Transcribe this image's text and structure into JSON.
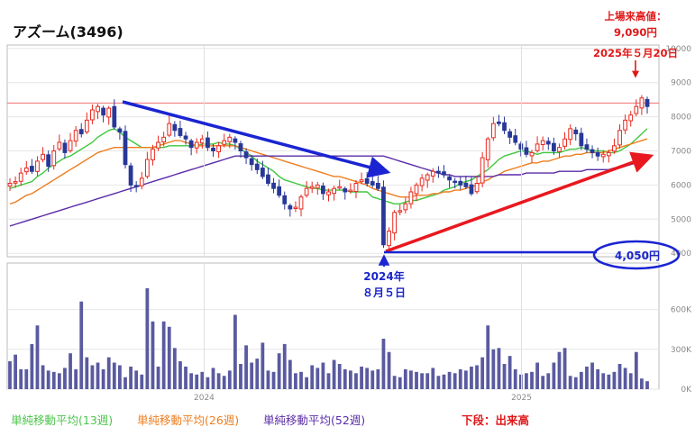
{
  "title": "アズーム(3496)",
  "colors": {
    "up": "#e8281e",
    "down": "#283898",
    "ma13": "#3ec83e",
    "ma26": "#ee7d1e",
    "ma52": "#5a2ca8",
    "volume": "#5a5aa0",
    "blue_arrow": "#1a24d2",
    "red_arrow": "#e8181e",
    "high_line": "#f07070"
  },
  "legend": {
    "ma13": "単純移動平均(13週)",
    "ma26": "単純移動平均(26週)",
    "ma52": "単純移動平均(52週)",
    "volume_note": "下段：出来高"
  },
  "annotations": {
    "high_l1": "上場来高値：",
    "high_l2": "9,090円",
    "high_l3": "2025年５月20日",
    "low_l1": "2024年",
    "low_l2": "８月５日",
    "low_price": "4,050円"
  },
  "chart_data": {
    "type": "candlestick",
    "title": "アズーム(3496)",
    "xlabel": "",
    "ylabel": "",
    "x_range": [
      "2023-05-22",
      "2025-05-26"
    ],
    "x_ticks": [
      {
        "label": "2024",
        "date": "2024-01-01"
      },
      {
        "label": "2025",
        "date": "2025-01-01"
      }
    ],
    "price_ylim": [
      3900,
      10100
    ],
    "price_ticks": [
      {
        "label": "4000",
        "value": 4000
      },
      {
        "label": "5000",
        "value": 5000
      },
      {
        "label": "6000",
        "value": 6000
      },
      {
        "label": "7000",
        "value": 7000
      },
      {
        "label": "8000",
        "value": 8000
      },
      {
        "label": "9000",
        "value": 9000
      },
      {
        "label": "10000",
        "value": 10000
      }
    ],
    "volume_ylim": [
      0,
      950000
    ],
    "volume_ticks": [
      {
        "label": "0K",
        "value": 0
      },
      {
        "label": "300K",
        "value": 300000
      },
      {
        "label": "600K",
        "value": 600000
      }
    ],
    "high_line_value": 8400,
    "weekly_close": [
      6050,
      6100,
      6350,
      6500,
      6400,
      6700,
      6900,
      6550,
      7000,
      7250,
      6950,
      7300,
      7600,
      7500,
      7900,
      8200,
      8300,
      8050,
      8250,
      7700,
      7550,
      6600,
      6000,
      5950,
      6200,
      6750,
      7050,
      7250,
      7400,
      7800,
      7600,
      7450,
      7350,
      7100,
      7250,
      7350,
      7100,
      7000,
      7150,
      7300,
      7400,
      7250,
      7000,
      6800,
      6600,
      6450,
      6250,
      6050,
      5900,
      5700,
      5450,
      5300,
      5350,
      5650,
      5900,
      5950,
      6000,
      5750,
      5800,
      5900,
      5950,
      5800,
      5850,
      6050,
      6150,
      6050,
      6000,
      5900,
      4250,
      4650,
      5200,
      5250,
      5450,
      5800,
      6000,
      6200,
      6300,
      6400,
      6350,
      6300,
      6150,
      6100,
      6000,
      5950,
      5750,
      6050,
      6800,
      7350,
      7800,
      7800,
      7600,
      7400,
      7250,
      7050,
      6900,
      6950,
      7200,
      7300,
      7200,
      7000,
      7100,
      7350,
      7650,
      7500,
      7150,
      7050,
      6950,
      6850,
      6900,
      6950,
      7150,
      7600,
      7900,
      8050,
      8300,
      8550,
      8300
    ],
    "volume": [
      210000,
      260000,
      150000,
      150000,
      340000,
      480000,
      180000,
      140000,
      130000,
      120000,
      160000,
      270000,
      150000,
      660000,
      240000,
      180000,
      200000,
      150000,
      240000,
      200000,
      180000,
      90000,
      170000,
      140000,
      110000,
      760000,
      510000,
      170000,
      510000,
      470000,
      310000,
      210000,
      170000,
      120000,
      110000,
      130000,
      90000,
      160000,
      120000,
      100000,
      140000,
      560000,
      190000,
      330000,
      200000,
      230000,
      350000,
      140000,
      130000,
      270000,
      340000,
      220000,
      120000,
      130000,
      90000,
      180000,
      160000,
      200000,
      120000,
      220000,
      190000,
      150000,
      140000,
      120000,
      170000,
      160000,
      140000,
      150000,
      380000,
      280000,
      100000,
      90000,
      150000,
      140000,
      130000,
      120000,
      120000,
      160000,
      100000,
      110000,
      130000,
      120000,
      150000,
      140000,
      170000,
      180000,
      240000,
      480000,
      300000,
      310000,
      190000,
      250000,
      150000,
      110000,
      120000,
      130000,
      200000,
      100000,
      120000,
      200000,
      280000,
      310000,
      100000,
      90000,
      130000,
      170000,
      200000,
      150000,
      120000,
      110000,
      130000,
      190000,
      160000,
      120000,
      280000,
      80000,
      60000
    ],
    "moving_averages": [
      {
        "name": "単純移動平均(13週)",
        "label_key": "ma13",
        "values": [
          5900,
          5950,
          6000,
          6050,
          6100,
          6250,
          6350,
          6500,
          6600,
          6700,
          6800,
          6850,
          6950,
          7050,
          7150,
          7250,
          7400,
          7500,
          7600,
          7650,
          7550,
          7400,
          7300,
          7200,
          7100,
          7100,
          7100,
          7100,
          7100,
          7150,
          7150,
          7150,
          7150,
          7150,
          7150,
          7200,
          7200,
          7200,
          7250,
          7200,
          7200,
          7150,
          7050,
          6950,
          6850,
          6700,
          6600,
          6500,
          6400,
          6250,
          6150,
          6100,
          6050,
          6000,
          5950,
          5900,
          5900,
          5850,
          5850,
          5850,
          5850,
          5850,
          5800,
          5800,
          5800,
          5800,
          5650,
          5600,
          5550,
          5500,
          5450,
          5450,
          5500,
          5550,
          5550,
          5600,
          5650,
          5700,
          5750,
          5850,
          5900,
          5950,
          6050,
          6100,
          6150,
          6250,
          6350,
          6450,
          6600,
          6750,
          6850,
          6900,
          6950,
          7000,
          7000,
          6950,
          6900,
          6950,
          6950,
          6950,
          6950,
          7000,
          7050,
          7050,
          7100,
          7050,
          7000,
          7000,
          7000,
          6950,
          6950,
          7000,
          7100,
          7200,
          7350,
          7500,
          7650
        ]
      },
      {
        "name": "単純移動平均(26週)",
        "label_key": "ma26",
        "values": [
          5450,
          5500,
          5600,
          5700,
          5750,
          5850,
          5950,
          6050,
          6150,
          6250,
          6350,
          6450,
          6550,
          6650,
          6750,
          6850,
          6950,
          7000,
          7050,
          7100,
          7100,
          7100,
          7100,
          7100,
          7100,
          7100,
          7100,
          7150,
          7200,
          7250,
          7300,
          7300,
          7250,
          7200,
          7150,
          7150,
          7150,
          7150,
          7150,
          7150,
          7150,
          7150,
          7100,
          7050,
          7000,
          6950,
          6900,
          6850,
          6800,
          6750,
          6700,
          6650,
          6600,
          6550,
          6500,
          6450,
          6400,
          6350,
          6300,
          6250,
          6250,
          6200,
          6150,
          6100,
          6050,
          6000,
          5900,
          5850,
          5800,
          5750,
          5700,
          5650,
          5650,
          5650,
          5700,
          5700,
          5700,
          5750,
          5750,
          5800,
          5800,
          5850,
          5850,
          5900,
          5950,
          6000,
          6100,
          6150,
          6250,
          6300,
          6400,
          6450,
          6500,
          6550,
          6600,
          6650,
          6650,
          6700,
          6700,
          6750,
          6800,
          6850,
          6850,
          6900,
          6900,
          6950,
          6950,
          6950,
          6950,
          7000,
          7050,
          7100,
          7150,
          7200,
          7250,
          7300,
          7350
        ]
      },
      {
        "name": "単純移動平均(52週)",
        "label_key": "ma52",
        "values": [
          4800,
          4850,
          4900,
          4950,
          5000,
          5050,
          5100,
          5150,
          5200,
          5250,
          5300,
          5350,
          5400,
          5450,
          5500,
          5550,
          5600,
          5650,
          5700,
          5750,
          5800,
          5850,
          5900,
          5950,
          6000,
          6050,
          6100,
          6150,
          6200,
          6250,
          6300,
          6350,
          6400,
          6450,
          6500,
          6550,
          6600,
          6650,
          6700,
          6750,
          6800,
          6850,
          6850,
          6850,
          6850,
          6850,
          6850,
          6850,
          6850,
          6850,
          6850,
          6850,
          6850,
          6850,
          6850,
          6850,
          6850,
          6850,
          6850,
          6850,
          6850,
          6850,
          6850,
          6850,
          6850,
          6850,
          6850,
          6850,
          6850,
          6800,
          6750,
          6700,
          6650,
          6600,
          6550,
          6500,
          6450,
          6400,
          6350,
          6300,
          6300,
          6250,
          6250,
          6250,
          6250,
          6250,
          6250,
          6250,
          6250,
          6300,
          6300,
          6300,
          6300,
          6300,
          6350,
          6350,
          6350,
          6350,
          6350,
          6350,
          6400,
          6400,
          6400,
          6400,
          6400,
          6450,
          6450,
          6450,
          6450,
          6450,
          6500,
          6500,
          6550,
          6600,
          6650,
          6650,
          6700
        ]
      }
    ],
    "annotations": [
      {
        "kind": "all_time_high",
        "value": 9090,
        "date": "2025-05-20"
      },
      {
        "kind": "low",
        "value": 4050,
        "date": "2024-08-05"
      }
    ]
  }
}
